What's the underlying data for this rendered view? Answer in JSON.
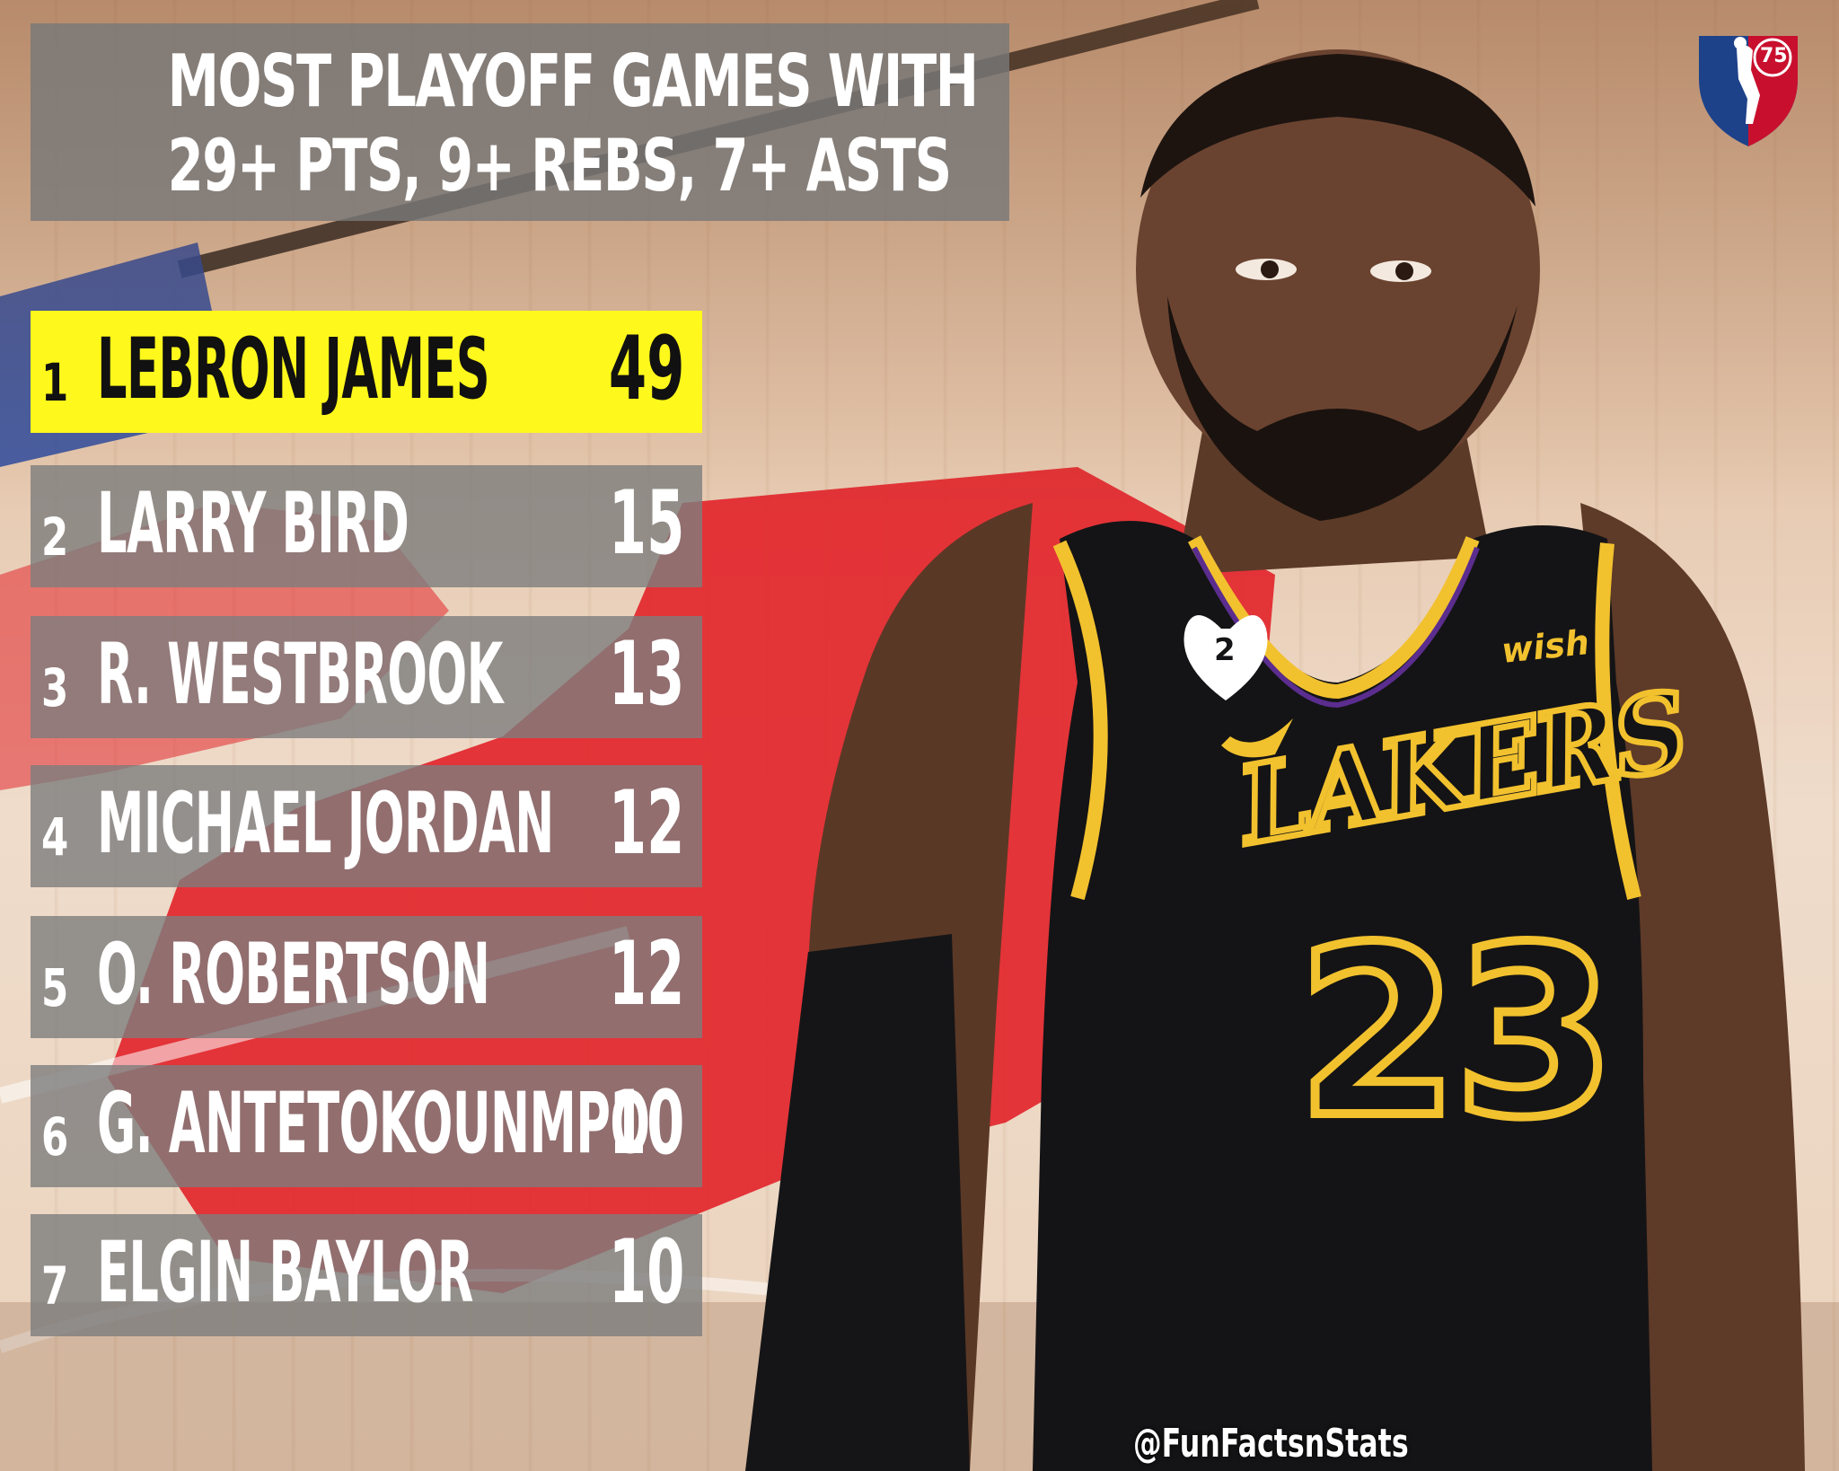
{
  "header": {
    "title_line1": "MOST PLAYOFF GAMES WITH",
    "title_line2": "29+ PTS, 9+ REBS, 7+ ASTS"
  },
  "ranking": [
    {
      "rank": "1",
      "player": "LEBRON JAMES",
      "games": "49"
    },
    {
      "rank": "2",
      "player": "LARRY BIRD",
      "games": "15"
    },
    {
      "rank": "3",
      "player": "R. WESTBROOK",
      "games": "13"
    },
    {
      "rank": "4",
      "player": "MICHAEL JORDAN",
      "games": "12"
    },
    {
      "rank": "5",
      "player": "O. ROBERTSON",
      "games": "12"
    },
    {
      "rank": "6",
      "player": "G. ANTETOKOUNMPO",
      "games": "10"
    },
    {
      "rank": "7",
      "player": "ELGIN BAYLOR",
      "games": "10"
    }
  ],
  "logo": {
    "text": "75",
    "icon": "nba-75-logo-icon"
  },
  "photo": {
    "jersey_team": "LAKERS",
    "jersey_number": "23",
    "jersey_sponsor": "wish",
    "heart_patch": "2"
  },
  "watermark": "@FunFactsnStats",
  "colors": {
    "highlight": "#fff81c",
    "row_bg": "#7d7d7d",
    "court_red": "#e2262c",
    "court_blue": "#2a4aa0",
    "jersey_black": "#141416",
    "jersey_gold": "#f2c12e",
    "jersey_purple": "#5b2d8e"
  }
}
